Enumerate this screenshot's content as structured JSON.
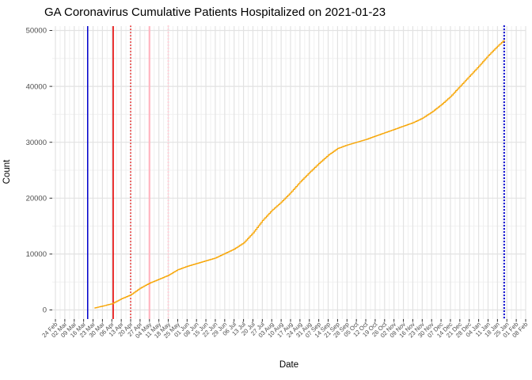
{
  "chart_data": {
    "type": "line",
    "title": "GA Coronavirus Cumulative Patients Hospitalized on 2021-01-23",
    "xlabel": "Date",
    "ylabel": "Count",
    "ylim": [
      0,
      50000
    ],
    "y_ticks": [
      0,
      10000,
      20000,
      30000,
      40000,
      50000
    ],
    "y_minor_ticks": [
      5000,
      15000,
      25000,
      35000,
      45000
    ],
    "x_tick_start_date": "2020-02-24",
    "x_tick_interval_days": 7,
    "x_tick_labels": [
      "24 Feb",
      "02 Mar",
      "09 Mar",
      "16 Mar",
      "23 Mar",
      "30 Mar",
      "06 Apr",
      "13 Apr",
      "20 Apr",
      "27 Apr",
      "04 May",
      "11 May",
      "18 May",
      "25 May",
      "01 Jun",
      "08 Jun",
      "15 Jun",
      "22 Jun",
      "29 Jun",
      "06 Jul",
      "13 Jul",
      "20 Jul",
      "27 Jul",
      "03 Aug",
      "10 Aug",
      "17 Aug",
      "24 Aug",
      "31 Aug",
      "07 Sep",
      "14 Sep",
      "21 Sep",
      "28 Sep",
      "05 Oct",
      "12 Oct",
      "19 Oct",
      "26 Oct",
      "02 Nov",
      "09 Nov",
      "16 Nov",
      "23 Nov",
      "30 Nov",
      "07 Dec",
      "14 Dec",
      "21 Dec",
      "28 Dec",
      "04 Jan",
      "11 Jan",
      "18 Jan",
      "25 Jan",
      "01 Feb",
      "08 Feb"
    ],
    "grid": true,
    "legend": false,
    "series": [
      {
        "name": "cumulative-patients-hospitalized",
        "color": "#F7A400",
        "points_day_value": [
          [
            29,
            350
          ],
          [
            35,
            700
          ],
          [
            42,
            1100
          ],
          [
            49,
            2000
          ],
          [
            56,
            2700
          ],
          [
            63,
            3900
          ],
          [
            70,
            4800
          ],
          [
            77,
            5500
          ],
          [
            84,
            6200
          ],
          [
            91,
            7200
          ],
          [
            98,
            7800
          ],
          [
            105,
            8300
          ],
          [
            112,
            8800
          ],
          [
            119,
            9300
          ],
          [
            126,
            10100
          ],
          [
            133,
            10900
          ],
          [
            140,
            12000
          ],
          [
            147,
            13800
          ],
          [
            154,
            16000
          ],
          [
            161,
            17800
          ],
          [
            168,
            19300
          ],
          [
            175,
            21000
          ],
          [
            182,
            22900
          ],
          [
            189,
            24600
          ],
          [
            196,
            26200
          ],
          [
            203,
            27700
          ],
          [
            210,
            28900
          ],
          [
            217,
            29500
          ],
          [
            224,
            30000
          ],
          [
            231,
            30500
          ],
          [
            238,
            31100
          ],
          [
            245,
            31700
          ],
          [
            252,
            32300
          ],
          [
            259,
            32900
          ],
          [
            266,
            33500
          ],
          [
            273,
            34300
          ],
          [
            280,
            35400
          ],
          [
            287,
            36700
          ],
          [
            294,
            38200
          ],
          [
            301,
            40000
          ],
          [
            308,
            41800
          ],
          [
            315,
            43600
          ],
          [
            322,
            45500
          ],
          [
            329,
            47200
          ],
          [
            334,
            48300
          ]
        ]
      }
    ],
    "reference_lines": [
      {
        "name": "blue-solid-vline",
        "day": 24,
        "color": "#0000CD",
        "style": "solid",
        "width": 1.5
      },
      {
        "name": "red-solid-vline",
        "day": 43,
        "color": "#E60000",
        "style": "solid",
        "width": 1.6
      },
      {
        "name": "red-dotted-vline",
        "day": 56,
        "color": "#E60000",
        "style": "dotted",
        "width": 1.6
      },
      {
        "name": "pink-solid-vline",
        "day": 70,
        "color": "#FFB6C1",
        "style": "solid",
        "width": 2.2
      },
      {
        "name": "pink-dotted-vline",
        "day": 84,
        "color": "#FFD0D8",
        "style": "dotted",
        "width": 2.2
      },
      {
        "name": "blue-dotted-vline",
        "day": 334,
        "color": "#0000CD",
        "style": "dotted",
        "width": 2.2
      }
    ],
    "colors": {
      "grid_major": "#E2E2E2",
      "grid_minor": "#F0F0F0",
      "tick_mark": "#333333",
      "axis_text": "#4D4D4D",
      "title_text": "#000000",
      "background": "#FFFFFF"
    }
  }
}
